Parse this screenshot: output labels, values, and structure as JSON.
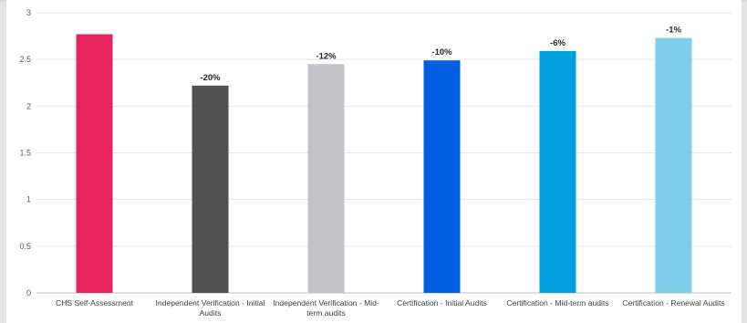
{
  "chart_data": {
    "type": "bar",
    "categories": [
      [
        "CHS Self-Assessment"
      ],
      [
        "Independent Verification - Initial",
        "Audits"
      ],
      [
        "Independent Verification - Mid-",
        "term audits"
      ],
      [
        "Certification - Initial Audits"
      ],
      [
        "Certification - Mid-term audits"
      ],
      [
        "Certification - Renewal Audits"
      ]
    ],
    "values": [
      2.77,
      2.22,
      2.45,
      2.49,
      2.59,
      2.73
    ],
    "data_labels": [
      "",
      "-20%",
      "-12%",
      "-10%",
      "-6%",
      "-1%"
    ],
    "colors": [
      "#e8245c",
      "#515151",
      "#c3c3c7",
      "#005ee0",
      "#00a1e0",
      "#7ecfec"
    ],
    "ylim": [
      0,
      3
    ],
    "yticks": [
      "0",
      "0.5",
      "1",
      "1.5",
      "2",
      "2.5",
      "3"
    ],
    "grid": true,
    "legend": "none"
  }
}
